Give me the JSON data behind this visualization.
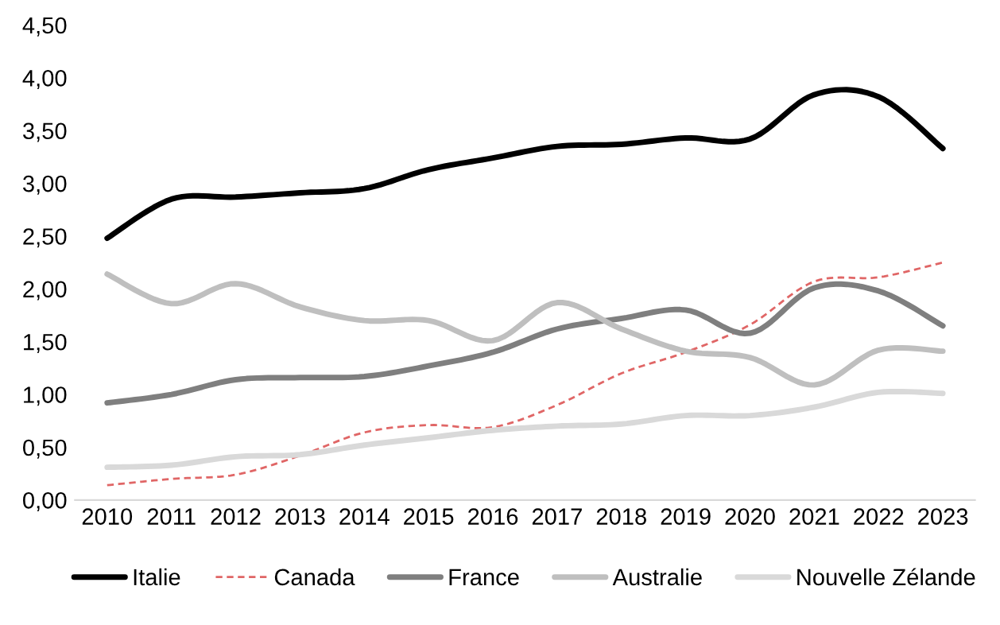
{
  "chart_data": {
    "type": "line",
    "categories": [
      "2010",
      "2011",
      "2012",
      "2013",
      "2014",
      "2015",
      "2016",
      "2017",
      "2018",
      "2019",
      "2020",
      "2021",
      "2022",
      "2023"
    ],
    "ylim": [
      0,
      4.5
    ],
    "yticks": [
      {
        "value": 0,
        "label": "0,00"
      },
      {
        "value": 0.5,
        "label": "0,50"
      },
      {
        "value": 1,
        "label": "1,00"
      },
      {
        "value": 1.5,
        "label": "1,50"
      },
      {
        "value": 2,
        "label": "2,00"
      },
      {
        "value": 2.5,
        "label": "2,50"
      },
      {
        "value": 3,
        "label": "3,00"
      },
      {
        "value": 3.5,
        "label": "3,50"
      },
      {
        "value": 4,
        "label": "4,00"
      },
      {
        "value": 4.5,
        "label": "4,50"
      }
    ],
    "grid": false,
    "legend": "bottom",
    "marker": "none",
    "series": [
      {
        "name": "Italie",
        "color": "#000000",
        "line_style": "solid",
        "values": [
          2.48,
          2.85,
          2.87,
          2.91,
          2.95,
          3.13,
          3.24,
          3.35,
          3.37,
          3.43,
          3.42,
          3.84,
          3.82,
          3.33
        ]
      },
      {
        "name": "Canada",
        "color": "#e06666",
        "line_style": "dashed",
        "values": [
          0.14,
          0.2,
          0.24,
          0.42,
          0.64,
          0.71,
          0.69,
          0.9,
          1.2,
          1.4,
          1.66,
          2.07,
          2.11,
          2.25
        ]
      },
      {
        "name": "France",
        "color": "#7f7f7f",
        "line_style": "solid",
        "values": [
          0.92,
          1.0,
          1.14,
          1.16,
          1.17,
          1.27,
          1.4,
          1.62,
          1.72,
          1.8,
          1.58,
          2.01,
          1.98,
          1.65
        ]
      },
      {
        "name": "Australie",
        "color": "#bfbfbf",
        "line_style": "solid",
        "values": [
          2.14,
          1.86,
          2.05,
          1.83,
          1.7,
          1.7,
          1.51,
          1.87,
          1.62,
          1.41,
          1.35,
          1.09,
          1.42,
          1.41
        ]
      },
      {
        "name": "Nouvelle Zélande",
        "color": "#d9d9d9",
        "line_style": "solid",
        "values": [
          0.31,
          0.33,
          0.41,
          0.43,
          0.52,
          0.59,
          0.66,
          0.7,
          0.72,
          0.8,
          0.8,
          0.88,
          1.02,
          1.01
        ]
      }
    ]
  }
}
